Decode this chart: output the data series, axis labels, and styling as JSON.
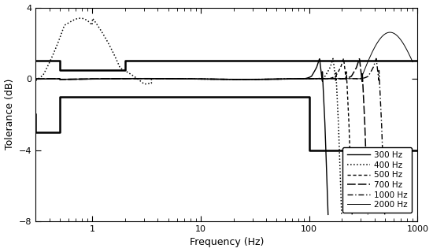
{
  "xlabel": "Frequency (Hz)",
  "ylabel": "Tolerance (dB)",
  "xlim": [
    0.3,
    1000
  ],
  "ylim": [
    -8,
    4
  ],
  "yticks": [
    -8,
    -4,
    0,
    4
  ],
  "background_color": "#ffffff",
  "legend_entries": [
    "300 Hz",
    "400 Hz",
    "500 Hz",
    "700 Hz",
    "1000 Hz",
    "2000 Hz"
  ],
  "upper_tol_x": [
    0.3,
    0.5,
    0.5,
    2.0,
    2.0,
    1000
  ],
  "upper_tol_y": [
    1.0,
    1.0,
    0.5,
    0.5,
    1.0,
    1.0
  ],
  "lower_tol_x": [
    0.3,
    0.3,
    0.5,
    0.5,
    100.0,
    100.0,
    1000
  ],
  "lower_tol_y": [
    -2.0,
    -3.0,
    -3.0,
    -1.0,
    -1.0,
    -4.0,
    -4.0
  ]
}
